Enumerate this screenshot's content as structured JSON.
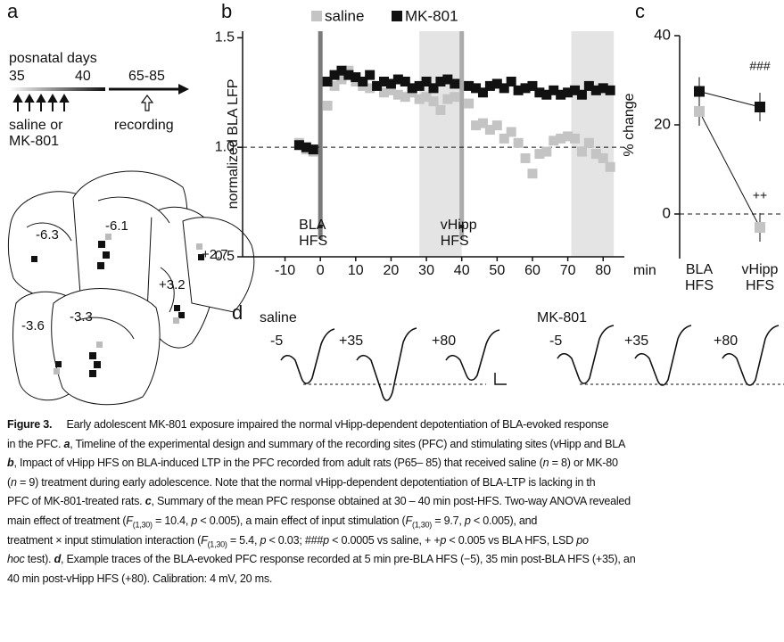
{
  "panel_a": {
    "label": "a",
    "timeline_title": "posnatal days",
    "days": [
      "35",
      "40",
      "65-85"
    ],
    "treatment": [
      "saline or",
      "MK-801"
    ],
    "recording": "recording",
    "sections": [
      "-6.3",
      "-6.1",
      "+2.7",
      "+3.2",
      "-3.6",
      "-3.3"
    ]
  },
  "chart_data": [
    {
      "type": "scatter",
      "panel_label": "b",
      "ylabel": "normalized BLA LFP",
      "xlabel": "min",
      "x": [
        -6,
        -4,
        -2,
        2,
        4,
        6,
        8,
        10,
        12,
        14,
        16,
        18,
        20,
        22,
        24,
        26,
        28,
        30,
        32,
        34,
        36,
        38,
        42,
        44,
        46,
        48,
        50,
        52,
        54,
        56,
        58,
        60,
        62,
        64,
        66,
        68,
        70,
        72,
        74,
        76,
        78,
        80,
        82
      ],
      "series": [
        {
          "name": "saline",
          "color": "#c4c4c4",
          "values": [
            1.02,
            0.99,
            0.98,
            1.19,
            1.28,
            1.31,
            1.35,
            1.3,
            1.28,
            1.27,
            1.28,
            1.25,
            1.26,
            1.24,
            1.23,
            1.25,
            1.22,
            1.23,
            1.21,
            1.17,
            1.22,
            1.23,
            1.2,
            1.1,
            1.11,
            1.08,
            1.1,
            1.04,
            1.07,
            1.02,
            0.95,
            0.88,
            0.97,
            0.98,
            1.03,
            1.04,
            1.05,
            1.04,
            0.98,
            1.02,
            0.97,
            0.95,
            0.91
          ]
        },
        {
          "name": "MK-801",
          "color": "#111111",
          "values": [
            1.01,
            1.0,
            0.99,
            1.3,
            1.33,
            1.35,
            1.33,
            1.32,
            1.3,
            1.33,
            1.28,
            1.3,
            1.29,
            1.31,
            1.3,
            1.27,
            1.28,
            1.3,
            1.27,
            1.3,
            1.31,
            1.29,
            1.28,
            1.27,
            1.25,
            1.28,
            1.29,
            1.27,
            1.3,
            1.26,
            1.27,
            1.28,
            1.25,
            1.24,
            1.26,
            1.24,
            1.25,
            1.26,
            1.24,
            1.28,
            1.26,
            1.27,
            1.26
          ]
        }
      ],
      "xlim": [
        -22,
        86
      ],
      "xticks": [
        -10,
        0,
        10,
        20,
        30,
        40,
        50,
        60,
        70,
        80
      ],
      "ylim": [
        0.5,
        1.53
      ],
      "yticks": [
        0.5,
        {
          "value": 1,
          "label": "1.0"
        },
        1.5
      ],
      "reference_line": 1,
      "shaded_ranges": [
        [
          28,
          40
        ],
        [
          71,
          83
        ]
      ],
      "events": [
        {
          "x": 0,
          "label": "BLA HFS",
          "color": "#7a7a7a"
        },
        {
          "x": 40,
          "label": "vHipp HFS",
          "color": "#ababab"
        }
      ],
      "legend": "top"
    },
    {
      "type": "line",
      "panel_label": "c",
      "ylabel": "% change",
      "categories": [
        "BLA HFS",
        "vHipp HFS"
      ],
      "series": [
        {
          "name": "saline",
          "color": "#c4c4c4",
          "values": [
            23,
            -3
          ]
        },
        {
          "name": "MK-801",
          "color": "#111111",
          "values": [
            27.5,
            24
          ]
        }
      ],
      "ylim": [
        -10,
        40
      ],
      "yticks": [
        0,
        20,
        40
      ],
      "reference_line": 0,
      "annotations": [
        {
          "text": "###",
          "category": 1,
          "y": 33
        },
        {
          "text": "++",
          "category": 1,
          "y": 4
        }
      ]
    }
  ],
  "panel_d": {
    "label": "d",
    "groups": [
      {
        "name": "saline",
        "traces": [
          "-5",
          "+35",
          "+80"
        ]
      },
      {
        "name": "MK-801",
        "traces": [
          "-5",
          "+35",
          "+80"
        ]
      }
    ]
  },
  "caption": {
    "lines": [
      [
        {
          "text": "Figure 3.",
          "style": "b"
        },
        {
          "text": "     Early adolescent MK-801 exposure impaired the normal vHipp-dependent depotentiation of BLA-evoked response"
        }
      ],
      [
        {
          "text": "in the PFC. "
        },
        {
          "text": "a",
          "style": "bi"
        },
        {
          "text": ", Timeline of the experimental design and summary of the recording sites (PFC) and stimulating sites (vHipp and BLA"
        }
      ],
      [
        {
          "text": "b",
          "style": "bi"
        },
        {
          "text": ", Impact of vHipp HFS on BLA-induced LTP in the PFC recorded from adult rats (P65– 85) that received saline ("
        },
        {
          "text": "n",
          "style": "i"
        },
        {
          "text": " = 8) or MK-80"
        }
      ],
      [
        {
          "text": "("
        },
        {
          "text": "n",
          "style": "i"
        },
        {
          "text": " = 9) treatment during early adolescence. Note that the normal vHipp-dependent depotentiation of BLA-LTP is lacking in th"
        }
      ],
      [
        {
          "text": "PFC of MK-801-treated rats. "
        },
        {
          "text": "c",
          "style": "bi"
        },
        {
          "text": ", Summary of the mean PFC response obtained at 30 – 40 min post-HFS. Two-way ANOVA revealed"
        }
      ],
      [
        {
          "text": "main effect of treatment ("
        },
        {
          "text": "F",
          "style": "i"
        },
        {
          "text": "(1,30)",
          "style": "sub"
        },
        {
          "text": " = 10.4, "
        },
        {
          "text": "p",
          "style": "i"
        },
        {
          "text": " < 0.005), a main effect of input stimulation ("
        },
        {
          "text": "F",
          "style": "i"
        },
        {
          "text": "(1,30)",
          "style": "sub"
        },
        {
          "text": " = 9.7, "
        },
        {
          "text": "p",
          "style": "i"
        },
        {
          "text": " < 0.005), and"
        }
      ],
      [
        {
          "text": "treatment × input stimulation interaction ("
        },
        {
          "text": "F",
          "style": "i"
        },
        {
          "text": "(1,30)",
          "style": "sub"
        },
        {
          "text": " = 5.4, "
        },
        {
          "text": "p",
          "style": "i"
        },
        {
          "text": " < 0.03; ###"
        },
        {
          "text": "p",
          "style": "i"
        },
        {
          "text": " < 0.0005 vs saline, + +"
        },
        {
          "text": "p",
          "style": "i"
        },
        {
          "text": " < 0.005 vs BLA HFS, LSD "
        },
        {
          "text": "po",
          "style": "i"
        }
      ],
      [
        {
          "text": "hoc",
          "style": "i"
        },
        {
          "text": " test). "
        },
        {
          "text": "d",
          "style": "bi"
        },
        {
          "text": ", Example traces of the BLA-evoked PFC response recorded at 5 min pre-BLA HFS (−5), 35 min post-BLA HFS (+35), an"
        }
      ],
      [
        {
          "text": "40 min post-vHipp HFS (+80). Calibration: 4 mV, 20 ms."
        }
      ]
    ]
  }
}
